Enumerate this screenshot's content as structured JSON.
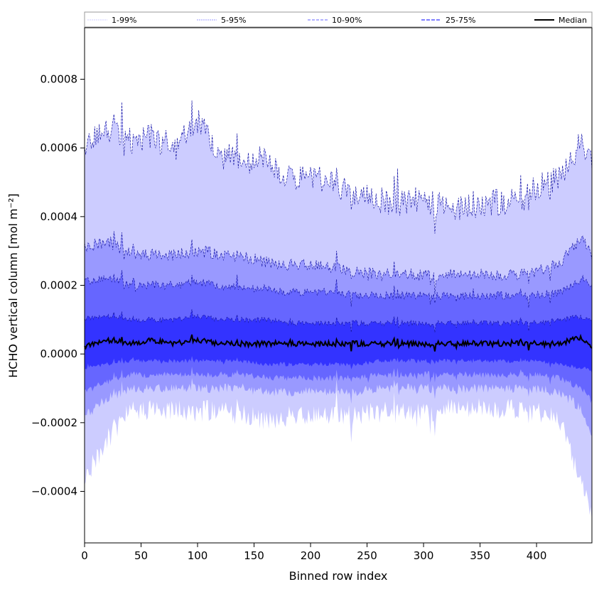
{
  "chart_data": {
    "type": "area",
    "title": "",
    "xlabel": "Binned row index",
    "ylabel": "HCHO vertical column [mol m⁻²]",
    "xlim": [
      0,
      449
    ],
    "ylim": [
      -0.00055,
      0.00095
    ],
    "x_ticks": [
      0,
      50,
      100,
      150,
      200,
      250,
      300,
      350,
      400
    ],
    "y_ticks": [
      -0.0004,
      -0.0002,
      0.0,
      0.0002,
      0.0004,
      0.0006,
      0.0008
    ],
    "y_tick_labels": [
      "−0.0004",
      "−0.0002",
      "0.0000",
      "0.0002",
      "0.0004",
      "0.0006",
      "0.0008"
    ],
    "grid": false,
    "legend": {
      "placement": "top",
      "entries": [
        "1-99%",
        "5-95%",
        "10-90%",
        "25-75%",
        "Median"
      ]
    },
    "series": [
      {
        "name": "1-99%",
        "color": "#ccccff",
        "keypoints_x": [
          0,
          20,
          40,
          60,
          80,
          100,
          120,
          140,
          160,
          180,
          200,
          220,
          240,
          260,
          280,
          300,
          320,
          340,
          360,
          380,
          400,
          420,
          440,
          449
        ],
        "upper": [
          0.00061,
          0.00065,
          0.00062,
          0.00063,
          0.0006,
          0.00068,
          0.00059,
          0.00055,
          0.00057,
          0.00051,
          0.00052,
          0.00049,
          0.00046,
          0.00045,
          0.00044,
          0.00045,
          0.00043,
          0.00043,
          0.00044,
          0.00044,
          0.00048,
          0.00052,
          0.00062,
          0.00055
        ],
        "lower": [
          -0.00036,
          -0.00025,
          -0.00017,
          -0.00016,
          -0.00016,
          -0.00017,
          -0.00016,
          -0.00018,
          -0.00019,
          -0.00018,
          -0.00018,
          -0.00018,
          -0.00018,
          -0.00017,
          -0.00017,
          -0.00017,
          -0.00016,
          -0.00016,
          -0.00016,
          -0.00016,
          -0.00017,
          -0.00019,
          -0.00038,
          -0.00048
        ]
      },
      {
        "name": "5-95%",
        "color": "#9999ff",
        "keypoints_x": [
          0,
          20,
          40,
          60,
          80,
          100,
          120,
          140,
          160,
          180,
          200,
          220,
          240,
          260,
          280,
          300,
          320,
          340,
          360,
          380,
          400,
          420,
          440,
          449
        ],
        "upper": [
          0.00031,
          0.00033,
          0.00029,
          0.00029,
          0.00029,
          0.0003,
          0.00029,
          0.00028,
          0.00027,
          0.00026,
          0.00026,
          0.00025,
          0.00024,
          0.00023,
          0.00023,
          0.00023,
          0.00023,
          0.00023,
          0.00023,
          0.00023,
          0.00024,
          0.00026,
          0.00034,
          0.00028
        ],
        "lower": [
          -0.00018,
          -0.00013,
          -0.0001,
          -0.0001,
          -0.0001,
          -0.0001,
          -0.0001,
          -0.0001,
          -0.00011,
          -0.00011,
          -0.00011,
          -0.00011,
          -0.00011,
          -0.0001,
          -0.0001,
          -0.0001,
          -0.0001,
          -0.0001,
          -0.0001,
          -0.0001,
          -0.0001,
          -0.00011,
          -0.00016,
          -0.00025
        ]
      },
      {
        "name": "10-90%",
        "color": "#6666ff",
        "keypoints_x": [
          0,
          20,
          40,
          60,
          80,
          100,
          120,
          140,
          160,
          180,
          200,
          220,
          240,
          260,
          280,
          300,
          320,
          340,
          360,
          380,
          400,
          420,
          440,
          449
        ],
        "upper": [
          0.00021,
          0.00022,
          0.0002,
          0.0002,
          0.0002,
          0.00021,
          0.0002,
          0.00019,
          0.00019,
          0.00018,
          0.00018,
          0.00018,
          0.00017,
          0.00017,
          0.00017,
          0.00017,
          0.00017,
          0.00017,
          0.00017,
          0.00017,
          0.00017,
          0.00018,
          0.00022,
          0.0002
        ],
        "lower": [
          -0.00011,
          -8e-05,
          -6e-05,
          -6e-05,
          -6e-05,
          -6e-05,
          -6e-05,
          -6e-05,
          -7e-05,
          -7e-05,
          -7e-05,
          -7e-05,
          -7e-05,
          -6e-05,
          -6e-05,
          -6e-05,
          -6e-05,
          -6e-05,
          -6e-05,
          -6e-05,
          -6e-05,
          -7e-05,
          -0.0001,
          -0.00014
        ]
      },
      {
        "name": "25-75%",
        "color": "#3333ff",
        "keypoints_x": [
          0,
          20,
          40,
          60,
          80,
          100,
          120,
          140,
          160,
          180,
          200,
          220,
          240,
          260,
          280,
          300,
          320,
          340,
          360,
          380,
          400,
          420,
          440,
          449
        ],
        "upper": [
          0.0001,
          0.00011,
          0.0001,
          0.0001,
          0.0001,
          0.00011,
          0.0001,
          0.0001,
          0.0001,
          9e-05,
          9e-05,
          9e-05,
          9e-05,
          9e-05,
          9e-05,
          9e-05,
          9e-05,
          9e-05,
          9e-05,
          9e-05,
          9e-05,
          0.0001,
          0.00011,
          0.0001
        ],
        "lower": [
          -4e-05,
          -3e-05,
          -2e-05,
          -2e-05,
          -2e-05,
          -2e-05,
          -2e-05,
          -2e-05,
          -3e-05,
          -3e-05,
          -3e-05,
          -3e-05,
          -3e-05,
          -2e-05,
          -2e-05,
          -2e-05,
          -2e-05,
          -2e-05,
          -2e-05,
          -2e-05,
          -2e-05,
          -3e-05,
          -4e-05,
          -5e-05
        ]
      },
      {
        "name": "Median",
        "color": "#000000",
        "keypoints_x": [
          0,
          20,
          40,
          60,
          80,
          100,
          120,
          140,
          160,
          180,
          200,
          220,
          240,
          260,
          280,
          300,
          320,
          340,
          360,
          380,
          400,
          420,
          440,
          449
        ],
        "values": [
          2e-05,
          4e-05,
          3e-05,
          4e-05,
          3e-05,
          4e-05,
          3e-05,
          3e-05,
          3e-05,
          3e-05,
          3e-05,
          3e-05,
          3e-05,
          3e-05,
          3e-05,
          3e-05,
          3e-05,
          3e-05,
          3e-05,
          3e-05,
          3e-05,
          3e-05,
          5e-05,
          2e-05
        ]
      }
    ]
  }
}
